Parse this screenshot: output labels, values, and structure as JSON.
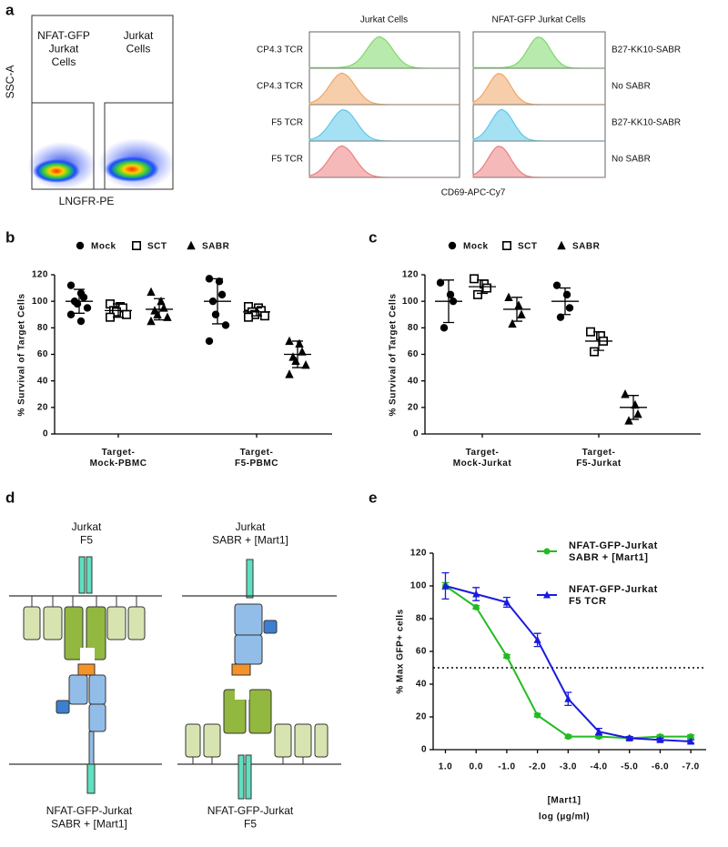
{
  "panel_labels": [
    "a",
    "b",
    "c",
    "d",
    "e"
  ],
  "panel_a": {
    "flow_plot": {
      "y_label": "SSC-A",
      "x_label": "LNGFR-PE",
      "gates": [
        "NFAT-GFP\nJurkat\nCells",
        "Jurkat\nCells"
      ]
    },
    "histograms": {
      "columns": [
        "Jurkat Cells",
        "NFAT-GFP Jurkat Cells"
      ],
      "row_labels_left": [
        "CP4.3 TCR",
        "CP4.3 TCR",
        "F5 TCR",
        "F5 TCR"
      ],
      "row_labels_right": [
        "B27-KK10-SABR",
        "No SABR",
        "B27-KK10-SABR",
        "No SABR"
      ],
      "row_colors": [
        "#7ed86a",
        "#f0a566",
        "#5cc8ea",
        "#ec7f7f"
      ],
      "x_label": "CD69-APC-Cy7"
    }
  },
  "chart_data": [
    {
      "type": "strip",
      "y_label": "% Survival of Target Cells",
      "categories": [
        "Target-\nMock-PBMC",
        "Target-\nF5-PBMC"
      ],
      "ylim": [
        0,
        120
      ],
      "yticks": [
        0,
        20,
        40,
        60,
        80,
        100,
        120
      ],
      "legend": "top",
      "series": [
        {
          "name": "Mock",
          "marker": "circle",
          "color": "#000000",
          "points": [
            [
              112,
              106,
              103,
              100,
              98,
              95,
              90,
              85
            ],
            [
              117,
              115,
              105,
              100,
              90,
              82,
              70
            ]
          ],
          "mean": [
            100,
            100
          ],
          "sd": [
            9,
            17
          ]
        },
        {
          "name": "SCT",
          "marker": "square",
          "color": "#000000",
          "points": [
            [
              98,
              96,
              95,
              93,
              92,
              90,
              88
            ],
            [
              96,
              95,
              93,
              92,
              90,
              89,
              88
            ]
          ],
          "mean": [
            93,
            92
          ],
          "sd": [
            5,
            3
          ]
        },
        {
          "name": "SABR",
          "marker": "triangle",
          "color": "#000000",
          "points": [
            [
              107,
              100,
              95,
              93,
              90,
              88,
              85
            ],
            [
              70,
              68,
              62,
              58,
              55,
              52,
              45
            ]
          ],
          "mean": [
            94,
            60
          ],
          "sd": [
            8,
            10
          ]
        }
      ]
    },
    {
      "type": "strip",
      "y_label": "% Survival of Target Cells",
      "categories": [
        "Target-\nMock-Jurkat",
        "Target-\nF5-Jurkat"
      ],
      "ylim": [
        0,
        120
      ],
      "yticks": [
        0,
        20,
        40,
        60,
        80,
        100,
        120
      ],
      "legend": "top",
      "series": [
        {
          "name": "Mock",
          "marker": "circle",
          "color": "#000000",
          "points": [
            [
              114,
              105,
              100,
              80
            ],
            [
              112,
              105,
              95,
              88
            ]
          ],
          "mean": [
            100,
            100
          ],
          "sd": [
            16,
            10
          ]
        },
        {
          "name": "SCT",
          "marker": "square",
          "color": "#000000",
          "points": [
            [
              117,
              113,
              110,
              105
            ],
            [
              77,
              74,
              70,
              62
            ]
          ],
          "mean": [
            111,
            70
          ],
          "sd": [
            5,
            7
          ]
        },
        {
          "name": "SABR",
          "marker": "triangle",
          "color": "#000000",
          "points": [
            [
              103,
              97,
              90,
              83
            ],
            [
              30,
              22,
              15,
              10
            ]
          ],
          "mean": [
            94,
            20
          ],
          "sd": [
            9,
            9
          ]
        }
      ]
    },
    {
      "type": "line",
      "y_label": "% Max GFP+ cells",
      "x_label": "[Mart1]",
      "x_label_2": "log (µg/ml)",
      "x": [
        1,
        0,
        -1,
        -2,
        -3,
        -4,
        -5,
        -6,
        -7
      ],
      "xlim": [
        1.4,
        -7.5
      ],
      "xticks": [
        {
          "value": 1,
          "label": "1.0"
        },
        {
          "value": 0,
          "label": "0.0"
        },
        {
          "value": -1,
          "label": "-1.0"
        },
        {
          "value": -2,
          "label": "-2.0"
        },
        {
          "value": -3,
          "label": "-3.0"
        },
        {
          "value": -4,
          "label": "-4.0"
        },
        {
          "value": -5,
          "label": "-5.0"
        },
        {
          "value": -6,
          "label": "-6.0"
        },
        {
          "value": -7,
          "label": "-7.0"
        }
      ],
      "ylim": [
        0,
        120
      ],
      "yticks": [
        0,
        20,
        40,
        60,
        80,
        100,
        120
      ],
      "reference_line": 50,
      "legend": "top-right",
      "series": [
        {
          "name": "NFAT-GFP-Jurkat\nSABR + [Mart1]",
          "color": "#22bb22",
          "marker": "circle",
          "values": [
            100,
            87,
            57,
            21,
            8,
            8,
            7,
            8,
            8
          ],
          "errors": [
            2,
            1,
            1,
            1,
            1,
            1,
            1,
            1,
            1
          ]
        },
        {
          "name": "NFAT-GFP-Jurkat\nF5 TCR",
          "color": "#1a1adf",
          "marker": "triangle",
          "values": [
            100,
            95,
            90,
            67,
            31,
            11,
            7,
            6,
            5
          ],
          "errors": [
            8,
            4,
            3,
            4,
            4,
            2,
            1,
            1,
            1
          ]
        }
      ]
    }
  ],
  "panel_d": {
    "left": {
      "top_label": "Jurkat\nF5",
      "bottom_label": "NFAT-GFP-Jurkat\nSABR + [Mart1]"
    },
    "right": {
      "top_label": "Jurkat\nSABR + [Mart1]",
      "bottom_label": "NFAT-GFP-Jurkat\nF5"
    }
  }
}
